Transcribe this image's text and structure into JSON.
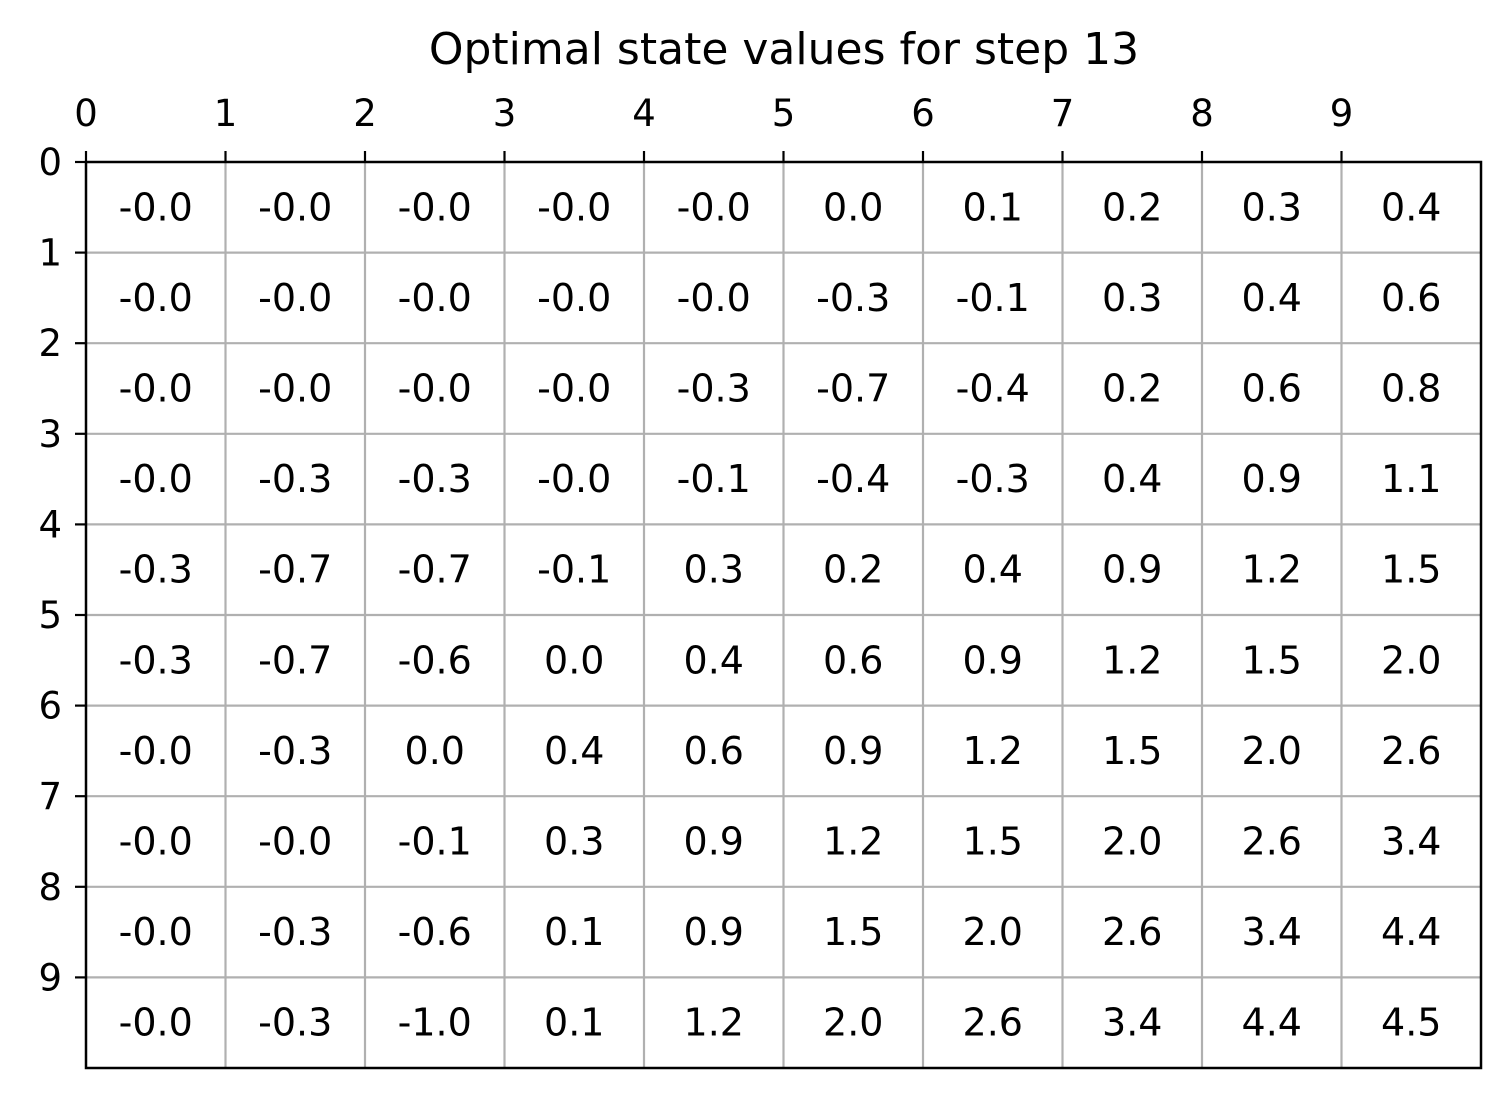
{
  "chart_data": {
    "type": "table",
    "title": "Optimal state values for step 13",
    "xlabel": "",
    "ylabel": "",
    "x_ticks": [
      "0",
      "1",
      "2",
      "3",
      "4",
      "5",
      "6",
      "7",
      "8",
      "9"
    ],
    "y_ticks": [
      "0",
      "1",
      "2",
      "3",
      "4",
      "5",
      "6",
      "7",
      "8",
      "9"
    ],
    "grid": true,
    "x_axis_position": "top",
    "rows": [
      [
        "-0.0",
        "-0.0",
        "-0.0",
        "-0.0",
        "-0.0",
        "0.0",
        "0.1",
        "0.2",
        "0.3",
        "0.4"
      ],
      [
        "-0.0",
        "-0.0",
        "-0.0",
        "-0.0",
        "-0.0",
        "-0.3",
        "-0.1",
        "0.3",
        "0.4",
        "0.6"
      ],
      [
        "-0.0",
        "-0.0",
        "-0.0",
        "-0.0",
        "-0.3",
        "-0.7",
        "-0.4",
        "0.2",
        "0.6",
        "0.8"
      ],
      [
        "-0.0",
        "-0.3",
        "-0.3",
        "-0.0",
        "-0.1",
        "-0.4",
        "-0.3",
        "0.4",
        "0.9",
        "1.1"
      ],
      [
        "-0.3",
        "-0.7",
        "-0.7",
        "-0.1",
        "0.3",
        "0.2",
        "0.4",
        "0.9",
        "1.2",
        "1.5"
      ],
      [
        "-0.3",
        "-0.7",
        "-0.6",
        "0.0",
        "0.4",
        "0.6",
        "0.9",
        "1.2",
        "1.5",
        "2.0"
      ],
      [
        "-0.0",
        "-0.3",
        "0.0",
        "0.4",
        "0.6",
        "0.9",
        "1.2",
        "1.5",
        "2.0",
        "2.6"
      ],
      [
        "-0.0",
        "-0.0",
        "-0.1",
        "0.3",
        "0.9",
        "1.2",
        "1.5",
        "2.0",
        "2.6",
        "3.4"
      ],
      [
        "-0.0",
        "-0.3",
        "-0.6",
        "0.1",
        "0.9",
        "1.5",
        "2.0",
        "2.6",
        "3.4",
        "4.4"
      ],
      [
        "-0.0",
        "-0.3",
        "-1.0",
        "0.1",
        "1.2",
        "2.0",
        "2.6",
        "3.4",
        "4.4",
        "4.5"
      ]
    ],
    "colors": {
      "grid": "#b0b0b0",
      "frame": "#000000",
      "text": "#000000"
    }
  }
}
